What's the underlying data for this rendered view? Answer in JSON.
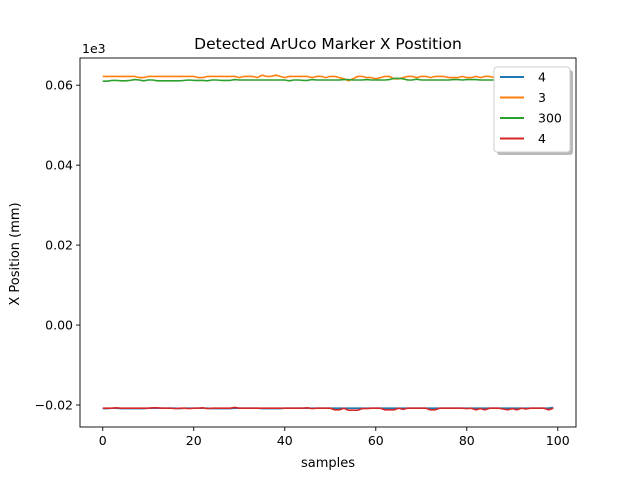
{
  "chart_data": {
    "type": "line",
    "title": "Detected ArUco Marker X Postition",
    "xlabel": "samples",
    "ylabel": "X Position (mm)",
    "y_offset_text": "1e3",
    "xlim": [
      -5,
      104
    ],
    "ylim": [
      -0.0255,
      0.0668
    ],
    "x_ticks": [
      0,
      20,
      40,
      60,
      80,
      100
    ],
    "y_ticks": [
      -0.02,
      0.0,
      0.02,
      0.04,
      0.06
    ],
    "y_tick_labels": [
      "−0.02",
      "0.00",
      "0.02",
      "0.04",
      "0.06"
    ],
    "grid": false,
    "legend_position": "upper-right",
    "series": [
      {
        "name": "4",
        "color": "#1f77b4",
        "values": [
          -0.0209,
          -0.0209,
          -0.0208,
          -0.0208,
          -0.0209,
          -0.0209,
          -0.0209,
          -0.0209,
          -0.0209,
          -0.0209,
          -0.0208,
          -0.0208,
          -0.0208,
          -0.0208,
          -0.0208,
          -0.0208,
          -0.0208,
          -0.0209,
          -0.0208,
          -0.0208,
          -0.0208,
          -0.0208,
          -0.0208,
          -0.0208,
          -0.0209,
          -0.0209,
          -0.0209,
          -0.0209,
          -0.0209,
          -0.0208,
          -0.0208,
          -0.0208,
          -0.0208,
          -0.0208,
          -0.0208,
          -0.0209,
          -0.0209,
          -0.0209,
          -0.0209,
          -0.0209,
          -0.0208,
          -0.0208,
          -0.0208,
          -0.0208,
          -0.0208,
          -0.0208,
          -0.0208,
          -0.0208,
          -0.0208,
          -0.0208,
          -0.0208,
          -0.0208,
          -0.0208,
          -0.0208,
          -0.0208,
          -0.0208,
          -0.0208,
          -0.0208,
          -0.0208,
          -0.0208,
          -0.0208,
          -0.0208,
          -0.0208,
          -0.0208,
          -0.0208,
          -0.0208,
          -0.0208,
          -0.0208,
          -0.0208,
          -0.0208,
          -0.0208,
          -0.0208,
          -0.0208,
          -0.0208,
          -0.0208,
          -0.0208,
          -0.0208,
          -0.0208,
          -0.0208,
          -0.0208,
          -0.0208,
          -0.0208,
          -0.0208,
          -0.0208,
          -0.0208,
          -0.0208,
          -0.0208,
          -0.0208,
          -0.0208,
          -0.0208,
          -0.0208,
          -0.0208,
          -0.0208,
          -0.0208,
          -0.0208,
          -0.0208,
          -0.0208,
          -0.0208,
          -0.0208,
          -0.0206
        ]
      },
      {
        "name": "3",
        "color": "#ff7f0e",
        "values": [
          0.0622,
          0.0622,
          0.0622,
          0.0622,
          0.0622,
          0.0622,
          0.0622,
          0.0622,
          0.0619,
          0.0619,
          0.0622,
          0.0622,
          0.0622,
          0.0622,
          0.0622,
          0.0622,
          0.0622,
          0.0622,
          0.0622,
          0.0622,
          0.0622,
          0.0619,
          0.0619,
          0.0622,
          0.0622,
          0.0622,
          0.0622,
          0.0622,
          0.0622,
          0.0622,
          0.0619,
          0.0622,
          0.0622,
          0.0622,
          0.0619,
          0.0625,
          0.0622,
          0.0622,
          0.0625,
          0.0622,
          0.0619,
          0.0622,
          0.0622,
          0.0622,
          0.0622,
          0.0622,
          0.0619,
          0.0622,
          0.0622,
          0.0619,
          0.0622,
          0.0622,
          0.0619,
          0.0616,
          0.0611,
          0.0616,
          0.0622,
          0.0622,
          0.0619,
          0.0619,
          0.0616,
          0.0619,
          0.0622,
          0.0622,
          0.0616,
          0.0616,
          0.0619,
          0.0622,
          0.0622,
          0.0619,
          0.0622,
          0.0622,
          0.0619,
          0.0622,
          0.0622,
          0.0622,
          0.0619,
          0.0619,
          0.0619,
          0.0622,
          0.0619,
          0.0619,
          0.0622,
          0.0619,
          0.0622,
          0.0622,
          0.0619,
          0.0622,
          0.0619,
          0.0619,
          0.0622,
          0.0622,
          0.0619,
          0.0619,
          0.0622,
          0.0622,
          0.0619,
          0.0619,
          0.0622,
          0.0622
        ]
      },
      {
        "name": "300",
        "color": "#2ca02c",
        "values": [
          0.061,
          0.061,
          0.0612,
          0.0612,
          0.0611,
          0.0611,
          0.0612,
          0.0614,
          0.0613,
          0.0611,
          0.0613,
          0.0613,
          0.0611,
          0.0611,
          0.0611,
          0.0611,
          0.0611,
          0.0611,
          0.0612,
          0.0613,
          0.0612,
          0.0612,
          0.0612,
          0.0611,
          0.0613,
          0.0613,
          0.0612,
          0.0612,
          0.0612,
          0.0614,
          0.0613,
          0.0613,
          0.0613,
          0.0613,
          0.0613,
          0.0613,
          0.0613,
          0.0613,
          0.0613,
          0.0613,
          0.0613,
          0.0611,
          0.0613,
          0.0613,
          0.0612,
          0.0612,
          0.0614,
          0.0613,
          0.0613,
          0.0613,
          0.0613,
          0.0613,
          0.0613,
          0.0614,
          0.0614,
          0.0613,
          0.0613,
          0.0613,
          0.0614,
          0.0613,
          0.0613,
          0.0613,
          0.0613,
          0.0614,
          0.0617,
          0.0617,
          0.0616,
          0.0613,
          0.0613,
          0.0615,
          0.0613,
          0.0613,
          0.0613,
          0.0613,
          0.0613,
          0.0613,
          0.0613,
          0.0614,
          0.0614,
          0.0613,
          0.0614,
          0.0614,
          0.0614,
          0.0613,
          0.0613,
          0.0613,
          0.0613,
          0.0613,
          0.0614,
          0.0614,
          0.0614,
          0.0613,
          0.0614,
          0.0614,
          0.0614,
          0.0613,
          0.0613,
          0.0613,
          0.0613,
          0.0613
        ]
      },
      {
        "name": "4",
        "color": "#d62728",
        "values": [
          -0.0208,
          -0.0208,
          -0.0208,
          -0.0207,
          -0.0208,
          -0.0208,
          -0.0208,
          -0.0208,
          -0.0208,
          -0.0208,
          -0.0208,
          -0.0207,
          -0.0207,
          -0.0208,
          -0.0208,
          -0.0208,
          -0.0209,
          -0.0208,
          -0.0208,
          -0.0209,
          -0.0208,
          -0.0208,
          -0.0207,
          -0.0209,
          -0.0208,
          -0.0208,
          -0.0208,
          -0.0208,
          -0.0208,
          -0.0206,
          -0.0208,
          -0.0208,
          -0.0208,
          -0.0208,
          -0.0208,
          -0.0208,
          -0.0208,
          -0.0208,
          -0.0208,
          -0.0208,
          -0.0208,
          -0.0208,
          -0.0208,
          -0.0208,
          -0.0208,
          -0.0207,
          -0.0209,
          -0.0208,
          -0.0208,
          -0.0208,
          -0.0208,
          -0.0212,
          -0.0212,
          -0.0208,
          -0.0213,
          -0.0213,
          -0.0213,
          -0.0209,
          -0.0209,
          -0.0208,
          -0.0208,
          -0.0208,
          -0.0212,
          -0.0212,
          -0.0212,
          -0.0208,
          -0.0211,
          -0.0208,
          -0.0208,
          -0.0208,
          -0.0208,
          -0.0208,
          -0.0212,
          -0.0212,
          -0.0208,
          -0.0208,
          -0.0208,
          -0.0208,
          -0.0208,
          -0.0208,
          -0.0209,
          -0.0208,
          -0.0212,
          -0.0209,
          -0.0212,
          -0.0208,
          -0.0208,
          -0.0208,
          -0.021,
          -0.0212,
          -0.0209,
          -0.0212,
          -0.0208,
          -0.021,
          -0.0208,
          -0.0208,
          -0.0208,
          -0.0208,
          -0.0212,
          -0.0208
        ]
      }
    ]
  }
}
